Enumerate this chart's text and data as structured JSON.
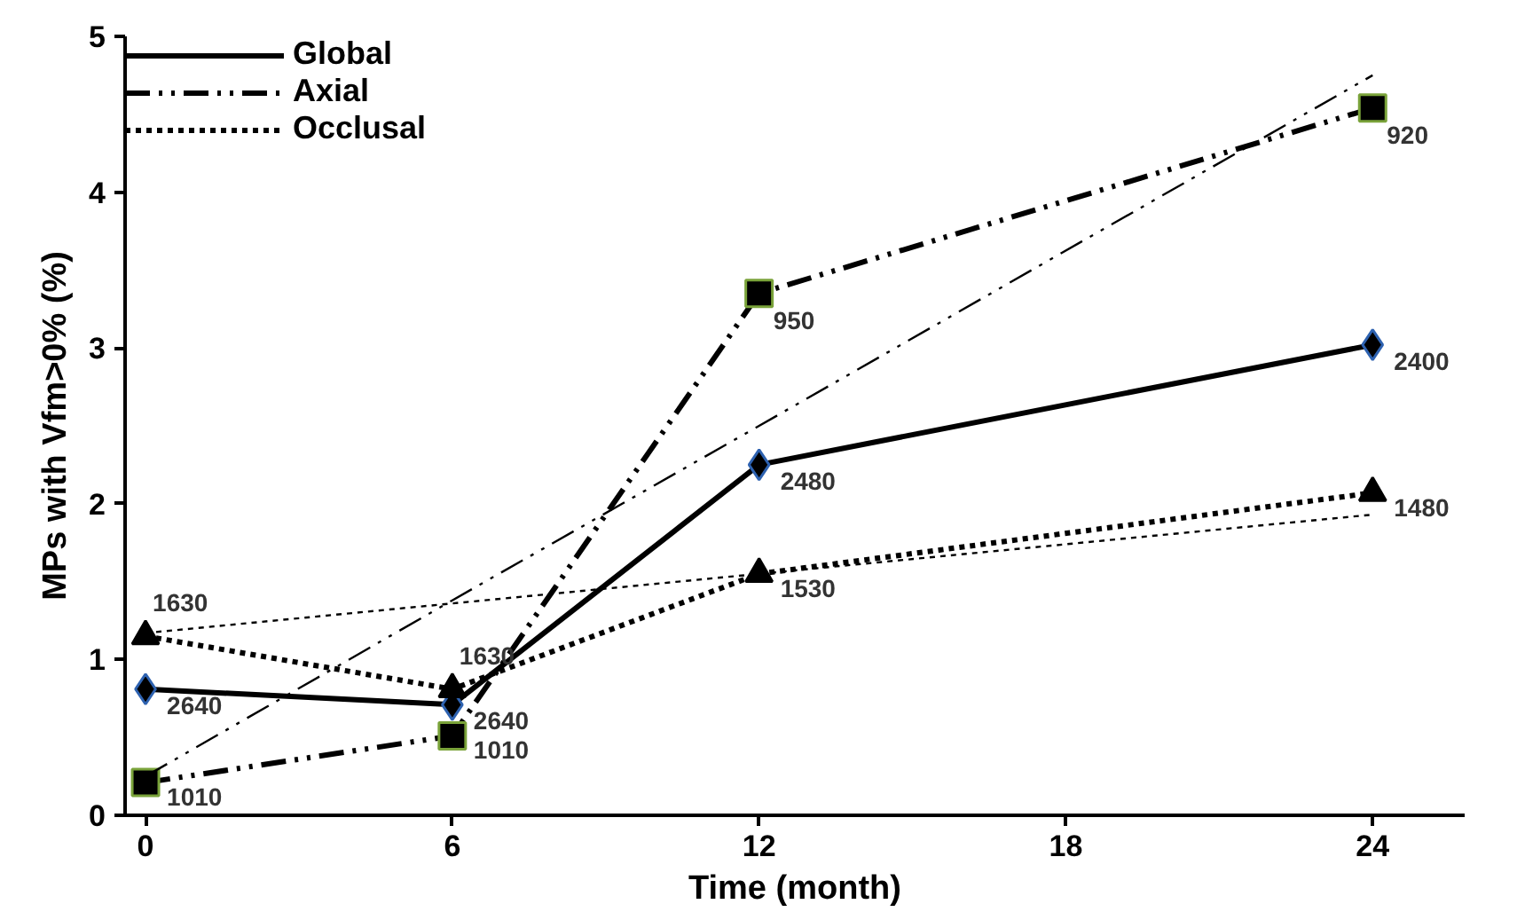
{
  "chart_data": {
    "type": "line",
    "xlabel": "Time (month)",
    "ylabel": "MPs with Vfm>0% (%)",
    "x": [
      0,
      6,
      12,
      24
    ],
    "xlim": [
      -0.4,
      25.8
    ],
    "xticks": [
      0,
      6,
      12,
      18,
      24
    ],
    "ylim": [
      0,
      5
    ],
    "yticks": [
      0,
      1,
      2,
      3,
      4,
      5
    ],
    "grid": false,
    "legend": "top left",
    "series": [
      {
        "name": "Global",
        "color": "#000000",
        "marker": "diamond",
        "line_style": "solid",
        "values": [
          0.81,
          0.71,
          2.25,
          3.02
        ]
      },
      {
        "name": "Axial",
        "color": "#000000",
        "marker": "square",
        "line_style": "dashed",
        "values": [
          0.21,
          0.51,
          3.35,
          4.54
        ]
      },
      {
        "name": "Occlusal",
        "color": "#000000",
        "marker": "triangle",
        "line_style": "dotted",
        "values": [
          1.15,
          0.81,
          1.55,
          2.07
        ]
      },
      {
        "color": "#000000",
        "marker": "none",
        "line_style": "dashed",
        "values": [
          0.25,
          1.38,
          2.5,
          4.75
        ]
      },
      {
        "color": "#000000",
        "marker": "none",
        "line_style": "dotted",
        "values": [
          1.17,
          1.36,
          1.55,
          1.93
        ]
      }
    ],
    "annotations": [
      {
        "text": "2640",
        "x": 0,
        "y": 0.81
      },
      {
        "text": "2640",
        "x": 6,
        "y": 0.71
      },
      {
        "text": "2480",
        "x": 12,
        "y": 2.25
      },
      {
        "text": "2400",
        "x": 24,
        "y": 3.02
      },
      {
        "text": "1010",
        "x": 0,
        "y": 0.21
      },
      {
        "text": "1010",
        "x": 6,
        "y": 0.51
      },
      {
        "text": "950",
        "x": 12,
        "y": 3.35
      },
      {
        "text": "920",
        "x": 24,
        "y": 4.54
      },
      {
        "text": "1630",
        "x": 0,
        "y": 1.15
      },
      {
        "text": "1630",
        "x": 6,
        "y": 0.81
      },
      {
        "text": "1530",
        "x": 12,
        "y": 1.55
      },
      {
        "text": "1480",
        "x": 24,
        "y": 2.07
      }
    ]
  }
}
